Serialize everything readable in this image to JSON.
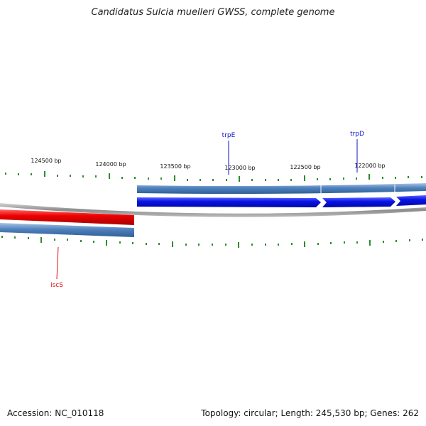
{
  "title": "Candidatus Sulcia muelleri GWSS, complete genome",
  "footer": {
    "accession": "Accession: NC_010118",
    "summary": "Topology: circular; Length: 245,530 bp; Genes: 262"
  },
  "ruler": {
    "labels": [
      "124500 bp",
      "124000 bp",
      "123500 bp",
      "123000 bp",
      "122500 bp",
      "122000 bp"
    ],
    "tick_color": "#2e8b2e"
  },
  "genes": [
    {
      "name": "trpE",
      "color": "#1010cc",
      "strand": "reverse"
    },
    {
      "name": "trpD",
      "color": "#1010cc",
      "strand": "reverse"
    },
    {
      "name": "iscS",
      "color": "#dd1111",
      "strand": "forward"
    }
  ],
  "colors": {
    "backbone": "#9a9a9a",
    "cds_track": "#4f81bd",
    "gene_reverse": "#0a14e6",
    "gene_forward": "#ee0000"
  }
}
